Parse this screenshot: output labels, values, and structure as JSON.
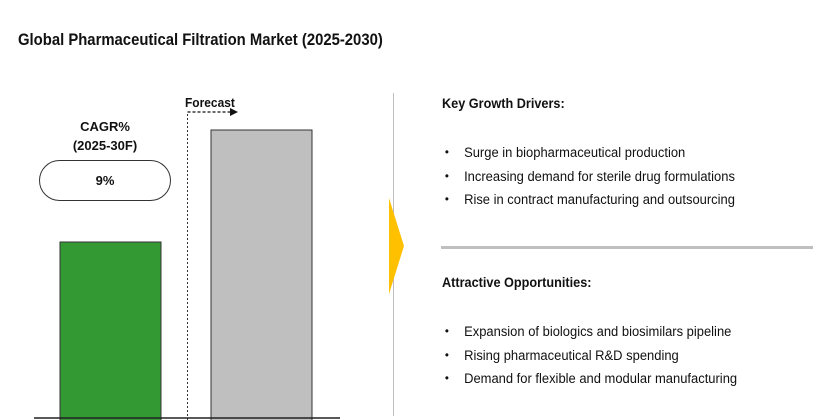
{
  "title": "Global Pharmaceutical Filtration Market (2025-2030)",
  "chart_data": {
    "type": "bar",
    "categories": [
      "",
      ""
    ],
    "values": [
      0.55,
      0.9
    ],
    "value_scale": "relative",
    "colors": [
      "#339933",
      "#bfbfbf"
    ],
    "forecast_label": "Forecast",
    "cagr_label": "CAGR%",
    "cagr_period": "(2025-30F)",
    "cagr_value": "9%"
  },
  "colors": {
    "arrow": "#ffc000",
    "divider": "#bfbfbf",
    "border": "#333333"
  },
  "drivers": {
    "title": "Key Growth Drivers:",
    "items": [
      "Surge in biopharmaceutical production",
      "Increasing demand for sterile drug formulations",
      "Rise in contract manufacturing and outsourcing"
    ]
  },
  "opportunities": {
    "title": "Attractive Opportunities:",
    "items": [
      "Expansion of biologics and biosimilars pipeline",
      "Rising pharmaceutical R&D spending",
      "Demand for flexible and modular manufacturing"
    ]
  }
}
